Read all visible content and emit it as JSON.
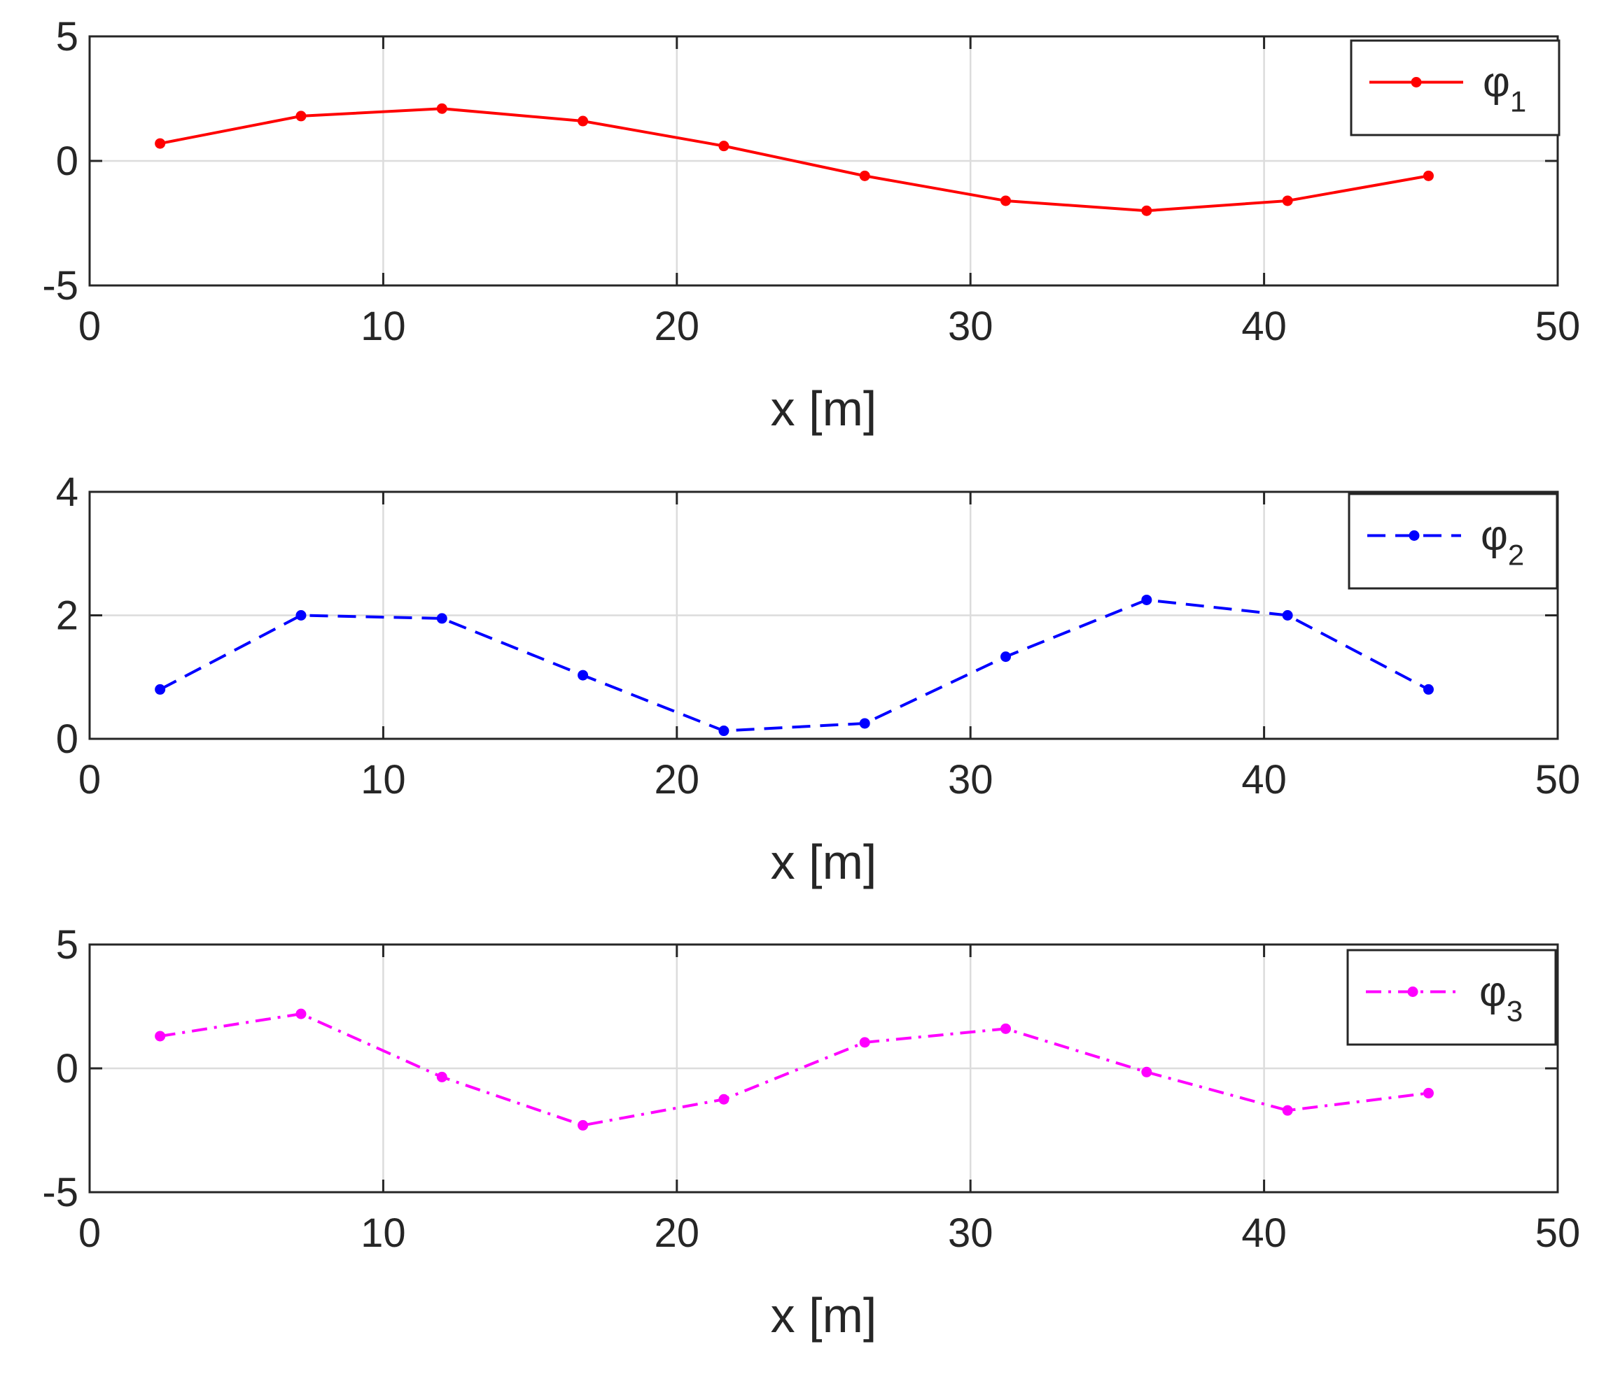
{
  "chart_data": [
    {
      "type": "line",
      "xlabel": "x [m]",
      "ylabel": "",
      "xlim": [
        0,
        50
      ],
      "ylim": [
        -5,
        5
      ],
      "xticks": [
        0,
        10,
        20,
        30,
        40,
        50
      ],
      "yticks": [
        -5,
        0,
        5
      ],
      "grid": true,
      "legend_position": "top-right",
      "series": [
        {
          "name": "φ1",
          "legend_base": "φ",
          "legend_subscript": "1",
          "color": "#ff0000",
          "line_style": "solid",
          "x": [
            2.4,
            7.2,
            12.0,
            16.8,
            21.6,
            26.4,
            31.2,
            36.0,
            40.8,
            45.6
          ],
          "y": [
            0.7,
            1.8,
            2.1,
            1.6,
            0.6,
            -0.6,
            -1.6,
            -2.0,
            -1.6,
            -0.6
          ]
        }
      ]
    },
    {
      "type": "line",
      "xlabel": "x [m]",
      "ylabel": "",
      "xlim": [
        0,
        50
      ],
      "ylim": [
        0,
        4
      ],
      "xticks": [
        0,
        10,
        20,
        30,
        40,
        50
      ],
      "yticks": [
        0,
        2,
        4
      ],
      "grid": true,
      "legend_position": "top-right",
      "series": [
        {
          "name": "φ2",
          "legend_base": "φ",
          "legend_subscript": "2",
          "color": "#0000ff",
          "line_style": "dashed",
          "x": [
            2.4,
            7.2,
            12.0,
            16.8,
            21.6,
            26.4,
            31.2,
            36.0,
            40.8,
            45.6
          ],
          "y": [
            0.8,
            2.0,
            1.95,
            1.03,
            0.13,
            0.25,
            1.33,
            2.25,
            2.0,
            0.8
          ]
        }
      ]
    },
    {
      "type": "line",
      "xlabel": "x [m]",
      "ylabel": "",
      "xlim": [
        0,
        50
      ],
      "ylim": [
        -5,
        5
      ],
      "xticks": [
        0,
        10,
        20,
        30,
        40,
        50
      ],
      "yticks": [
        -5,
        0,
        5
      ],
      "grid": true,
      "legend_position": "top-right",
      "series": [
        {
          "name": "φ3",
          "legend_base": "φ",
          "legend_subscript": "3",
          "color": "#ff00ff",
          "line_style": "dash-dot",
          "x": [
            2.4,
            7.2,
            12.0,
            16.8,
            21.6,
            26.4,
            31.2,
            36.0,
            40.8,
            45.6
          ],
          "y": [
            1.3,
            2.2,
            -0.35,
            -2.3,
            -1.25,
            1.05,
            1.6,
            -0.15,
            -1.7,
            -1.0
          ]
        }
      ]
    }
  ]
}
